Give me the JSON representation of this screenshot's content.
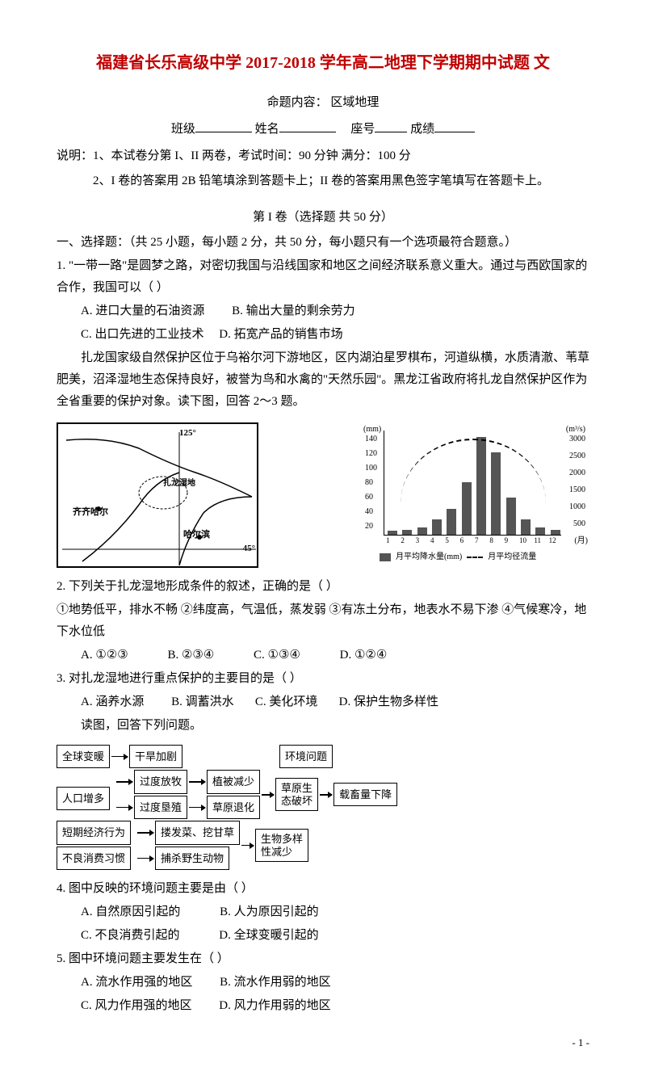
{
  "title": "福建省长乐高级中学 2017-2018 学年高二地理下学期期中试题 文",
  "subtitle": "命题内容：  区域地理",
  "form": {
    "class": "班级",
    "name": "姓名",
    "seat": "座号",
    "score": "成绩"
  },
  "notes": {
    "l1": "说明：1、本试卷分第 I、II 两卷，考试时间：90 分钟        满分：100 分",
    "l2": "2、I 卷的答案用 2B 铅笔填涂到答题卡上；II 卷的答案用黑色签字笔填写在答题卡上。"
  },
  "section1": "第 I 卷（选择题    共 50 分）",
  "intro": "一、选择题：（共 25 小题，每小题 2 分，共 50 分，每小题只有一个选项最符合题意。）",
  "q1": {
    "stem": "1.  \"一带一路\"是圆梦之路，对密切我国与沿线国家和地区之间经济联系意义重大。通过与西欧国家的合作，我国可以（    ）",
    "a": "A. 进口大量的石油资源",
    "b": "B. 输出大量的剩余劳力",
    "c": "C. 出口先进的工业技术",
    "d": "D. 拓宽产品的销售市场"
  },
  "passage1": "扎龙国家级自然保护区位于乌裕尔河下游地区，区内湖泊星罗棋布，河道纵横，水质清澈、苇草肥美，沼泽湿地生态保持良好，被誉为鸟和水禽的\"天然乐园\"。黑龙江省政府将扎龙自然保护区作为全省重要的保护对象。读下图，回答 2～3 题。",
  "map": {
    "lon": "125°",
    "lat": "45°",
    "c1": "齐齐哈尔",
    "c2": "扎龙湿地",
    "c3": "哈尔滨"
  },
  "chart": {
    "unit_l": "(mm)",
    "unit_r": "(m³/s)",
    "yl": [
      "140",
      "120",
      "100",
      "80",
      "60",
      "40",
      "20"
    ],
    "yr": [
      "3000",
      "2500",
      "2000",
      "1500",
      "1000",
      "500"
    ],
    "months": [
      "1",
      "2",
      "3",
      "4",
      "5",
      "6",
      "7",
      "8",
      "9",
      "10",
      "11",
      "12"
    ],
    "bars": [
      5,
      6,
      10,
      20,
      35,
      70,
      130,
      110,
      50,
      20,
      10,
      6
    ],
    "xlabel": "(月)",
    "legend1": "月平均降水量(mm)",
    "legend2": "月平均径流量"
  },
  "q2": {
    "stem": "2. 下列关于扎龙湿地形成条件的叙述，正确的是（  ）",
    "opts": "①地势低平，排水不畅       ②纬度高，气温低，蒸发弱           ③有冻土分布，地表水不易下渗       ④气候寒冷，地下水位低",
    "a": "A. ①②③",
    "b": "B. ②③④",
    "c": "C. ①③④",
    "d": "D. ①②④"
  },
  "q3": {
    "stem": "3. 对扎龙湿地进行重点保护的主要目的是（  ）",
    "a": "A. 涵养水源",
    "b": "B. 调蓄洪水",
    "c": "C. 美化环境",
    "d": "D. 保护生物多样性"
  },
  "passage2": "读图，回答下列问题。",
  "diagram": {
    "b1": "全球变暖",
    "b2": "干旱加剧",
    "b3": "人口增多",
    "b4": "过度放牧",
    "b5": "植被减少",
    "b6": "过度垦殖",
    "b7": "草原退化",
    "b8": "短期经济行为",
    "b9": "搂发菜、挖甘草",
    "b10": "不良消费习惯",
    "b11": "捕杀野生动物",
    "c1": "环境问题",
    "c2": "草原生态破坏",
    "c3": "载畜量下降",
    "c4": "生物多样性减少"
  },
  "q4": {
    "stem": "4. 图中反映的环境问题主要是由（  ）",
    "a": "A. 自然原因引起的",
    "b": "B. 人为原因引起的",
    "c": "C. 不良消费引起的",
    "d": "D. 全球变暖引起的"
  },
  "q5": {
    "stem": "5. 图中环境问题主要发生在（  ）",
    "a": "A. 流水作用强的地区",
    "b": "B. 流水作用弱的地区",
    "c": "C. 风力作用强的地区",
    "d": "D. 风力作用弱的地区"
  },
  "pagenum": "- 1 -"
}
